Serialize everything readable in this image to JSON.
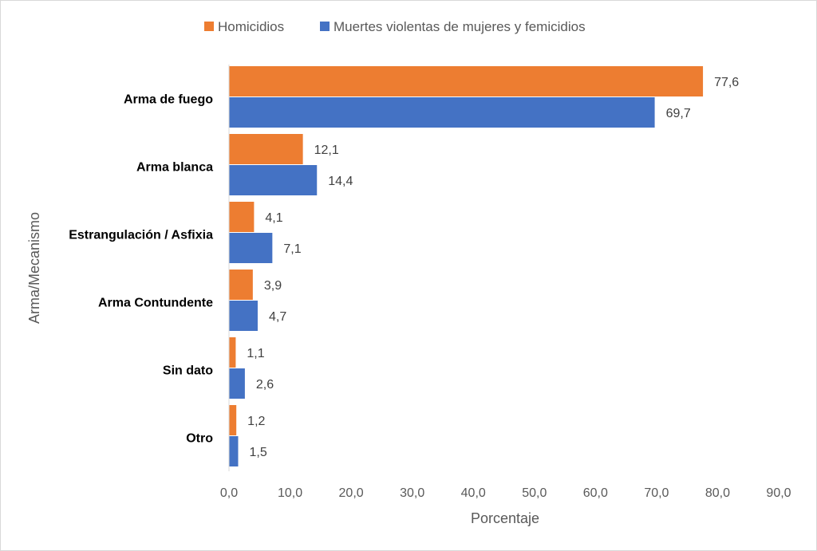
{
  "chart_data": {
    "type": "bar",
    "orientation": "horizontal",
    "categories": [
      "Arma de fuego",
      "Arma blanca",
      "Estrangulación / Asfixia",
      "Arma Contundente",
      "Sin dato",
      "Otro"
    ],
    "series": [
      {
        "name": "Homicidios",
        "color": "#ED7D31",
        "values": [
          77.6,
          12.1,
          4.1,
          3.9,
          1.1,
          1.2
        ],
        "labels": [
          "77,6",
          "12,1",
          "4,1",
          "3,9",
          "1,1",
          "1,2"
        ]
      },
      {
        "name": "Muertes violentas de mujeres y femicidios",
        "color": "#4472C4",
        "values": [
          69.7,
          14.4,
          7.1,
          4.7,
          2.6,
          1.5
        ],
        "labels": [
          "69,7",
          "14,4",
          "7,1",
          "4,7",
          "2,6",
          "1,5"
        ]
      }
    ],
    "xlabel": "Porcentaje",
    "ylabel": "Arma/Mecanismo",
    "xlim": [
      0,
      90
    ],
    "xticks": [
      "0,0",
      "10,0",
      "20,0",
      "30,0",
      "40,0",
      "50,0",
      "60,0",
      "70,0",
      "80,0",
      "90,0"
    ],
    "grid": false,
    "legend_position": "top"
  }
}
